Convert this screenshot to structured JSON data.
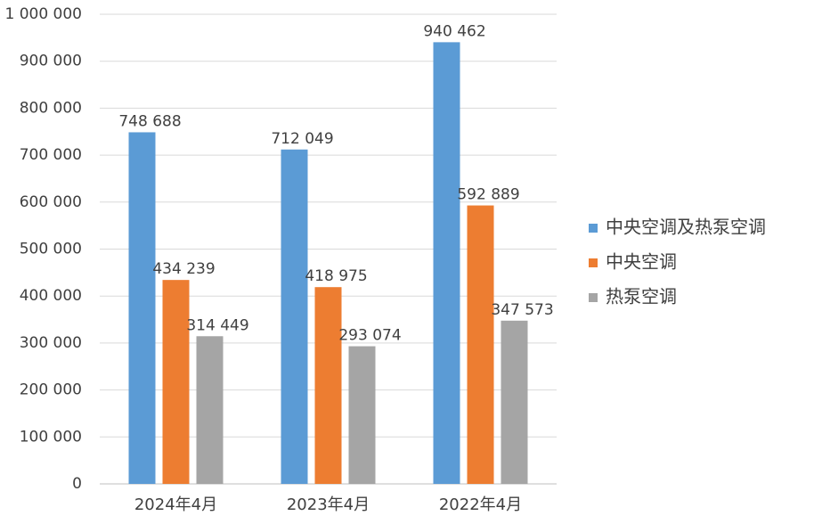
{
  "chart_data": {
    "type": "bar",
    "categories": [
      "2024年4月",
      "2023年4月",
      "2022年4月"
    ],
    "series": [
      {
        "name": "中央空调及热泵空调",
        "color": "#5b9bd5",
        "values": [
          748688,
          712049,
          940462
        ],
        "value_labels": [
          "748 688",
          "712 049",
          "940 462"
        ]
      },
      {
        "name": "中央空调",
        "color": "#ed7d31",
        "values": [
          434239,
          418975,
          592889
        ],
        "value_labels": [
          "434 239",
          "418 975",
          "592 889"
        ]
      },
      {
        "name": "热泵空调",
        "color": "#a5a5a5",
        "values": [
          314449,
          293074,
          347573
        ],
        "value_labels": [
          "314 449",
          "293 074",
          "347 573"
        ]
      }
    ],
    "ylim": [
      0,
      1000000
    ],
    "yticks": [
      0,
      {
        "value": 100000,
        "label": "100 000"
      },
      {
        "value": 200000,
        "label": "200 000"
      },
      {
        "value": 300000,
        "label": "300 000"
      },
      {
        "value": 400000,
        "label": "400 000"
      },
      {
        "value": 500000,
        "label": "500 000"
      },
      {
        "value": 600000,
        "label": "600 000"
      },
      {
        "value": 700000,
        "label": "700 000"
      },
      {
        "value": 800000,
        "label": "800 000"
      },
      {
        "value": 900000,
        "label": "900 000"
      },
      {
        "value": 1000000,
        "label": "1 000 000"
      }
    ],
    "grid": true,
    "legend": "right"
  }
}
